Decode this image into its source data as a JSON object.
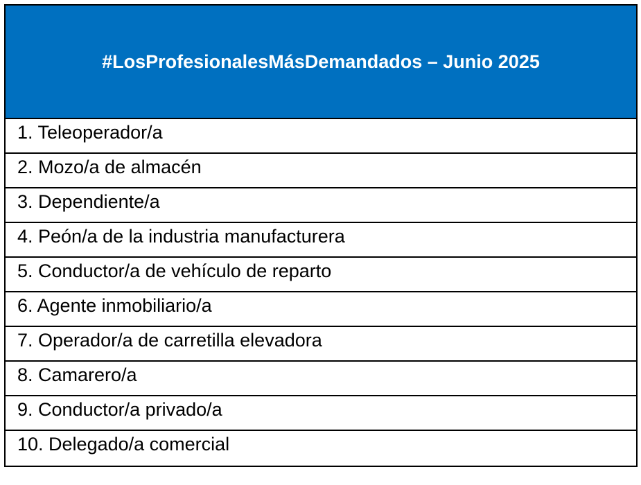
{
  "header": {
    "title": "#LosProfesionalesMásDemandados – Junio 2025",
    "color": "#0070C0"
  },
  "rows": [
    "1. Teleoperador/a",
    "2. Mozo/a de almacén",
    "3. Dependiente/a",
    "4. Peón/a de la industria manufacturera",
    "5. Conductor/a de vehículo de reparto",
    "6. Agente inmobiliario/a",
    "7. Operador/a de carretilla elevadora",
    "8. Camarero/a",
    "9. Conductor/a privado/a",
    "10. Delegado/a comercial"
  ]
}
